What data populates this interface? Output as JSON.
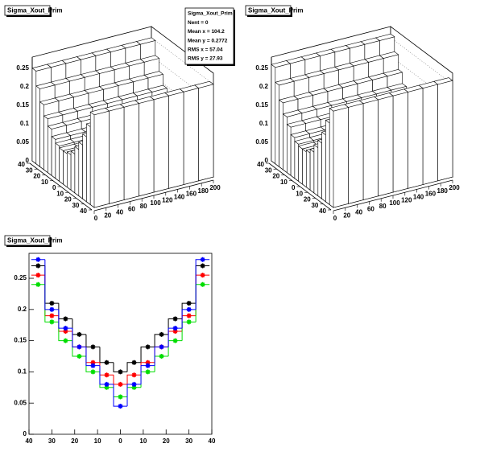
{
  "chart_data": [
    {
      "type": "lego",
      "title": "Sigma_Xout_Prim",
      "stats": [
        "Sigma_Xout_Prim",
        "Nent = 0",
        "Mean x = 104.2",
        "Mean y = 0.2772",
        "RMS x = 57.04",
        "RMS y = 27.93"
      ],
      "xlim": [
        0,
        200
      ],
      "ylim": [
        -40,
        40
      ],
      "zlim": [
        0,
        0.28
      ],
      "xticks": [
        0,
        20,
        40,
        60,
        80,
        100,
        120,
        140,
        160,
        180,
        200
      ],
      "yticks": [
        {
          "value": -40,
          "label": "40"
        },
        {
          "value": -30,
          "label": "30"
        },
        {
          "value": -20,
          "label": "20"
        },
        {
          "value": -10,
          "label": "10"
        },
        0,
        10,
        20,
        30,
        40
      ],
      "zticks": [
        0,
        0.05,
        0.1,
        0.15,
        0.2,
        0.25
      ],
      "xbins": [
        0,
        25,
        50,
        75,
        100,
        125,
        150,
        175,
        200
      ],
      "ybins": [
        -40,
        -35,
        -30,
        -25,
        -20,
        -15,
        -10,
        -5,
        0,
        5,
        10,
        15,
        20,
        25,
        30,
        35,
        40
      ],
      "values": [
        [
          0.25,
          0.21,
          0.175,
          0.145,
          0.125,
          0.105,
          0.095,
          0.09,
          0.09,
          0.095,
          0.105,
          0.125,
          0.145,
          0.175,
          0.21,
          0.25
        ],
        [
          0.25,
          0.21,
          0.175,
          0.145,
          0.125,
          0.105,
          0.095,
          0.09,
          0.09,
          0.095,
          0.105,
          0.125,
          0.145,
          0.175,
          0.21,
          0.25
        ],
        [
          0.25,
          0.21,
          0.175,
          0.145,
          0.125,
          0.105,
          0.095,
          0.09,
          0.09,
          0.095,
          0.105,
          0.125,
          0.145,
          0.175,
          0.21,
          0.25
        ],
        [
          0.25,
          0.21,
          0.175,
          0.145,
          0.125,
          0.105,
          0.095,
          0.09,
          0.09,
          0.095,
          0.105,
          0.125,
          0.145,
          0.175,
          0.21,
          0.25
        ],
        [
          0.25,
          0.21,
          0.175,
          0.145,
          0.125,
          0.105,
          0.095,
          0.09,
          0.09,
          0.095,
          0.105,
          0.125,
          0.145,
          0.175,
          0.21,
          0.25
        ],
        [
          0.25,
          0.21,
          0.175,
          0.145,
          0.125,
          0.105,
          0.095,
          0.09,
          0.09,
          0.095,
          0.105,
          0.125,
          0.145,
          0.175,
          0.21,
          0.25
        ],
        [
          0.25,
          0.21,
          0.175,
          0.145,
          0.125,
          0.105,
          0.095,
          0.09,
          0.09,
          0.095,
          0.105,
          0.125,
          0.145,
          0.175,
          0.21,
          0.25
        ],
        [
          0.25,
          0.21,
          0.175,
          0.145,
          0.125,
          0.105,
          0.095,
          0.09,
          0.09,
          0.095,
          0.105,
          0.125,
          0.145,
          0.175,
          0.21,
          0.25
        ]
      ]
    },
    {
      "type": "lego",
      "title": "Sigma_Xout_Prim",
      "xlim": [
        0,
        200
      ],
      "ylim": [
        -40,
        40
      ],
      "zlim": [
        0,
        0.28
      ],
      "xticks": [
        0,
        20,
        40,
        60,
        80,
        100,
        120,
        140,
        160,
        180,
        200
      ],
      "yticks": [
        {
          "value": -40,
          "label": "40"
        },
        {
          "value": -30,
          "label": "30"
        },
        {
          "value": -20,
          "label": "20"
        },
        {
          "value": -10,
          "label": "10"
        },
        0,
        10,
        20,
        30,
        40
      ],
      "zticks": [
        0,
        0.05,
        0.1,
        0.15,
        0.2,
        0.25
      ],
      "xbins": [
        0,
        25,
        50,
        75,
        100,
        125,
        150,
        175,
        200
      ],
      "ybins": [
        -40,
        -35,
        -30,
        -25,
        -20,
        -15,
        -10,
        -5,
        0,
        5,
        10,
        15,
        20,
        25,
        30,
        35,
        40
      ],
      "values": [
        [
          0.26,
          0.22,
          0.18,
          0.15,
          0.13,
          0.11,
          0.1,
          0.095,
          0.095,
          0.1,
          0.11,
          0.13,
          0.15,
          0.18,
          0.22,
          0.26
        ],
        [
          0.26,
          0.22,
          0.18,
          0.15,
          0.13,
          0.11,
          0.1,
          0.095,
          0.095,
          0.1,
          0.11,
          0.13,
          0.15,
          0.18,
          0.22,
          0.26
        ],
        [
          0.26,
          0.22,
          0.18,
          0.15,
          0.13,
          0.11,
          0.1,
          0.095,
          0.095,
          0.1,
          0.11,
          0.13,
          0.15,
          0.18,
          0.22,
          0.26
        ],
        [
          0.26,
          0.22,
          0.18,
          0.15,
          0.13,
          0.11,
          0.1,
          0.095,
          0.095,
          0.1,
          0.11,
          0.13,
          0.15,
          0.18,
          0.22,
          0.26
        ],
        [
          0.26,
          0.22,
          0.18,
          0.15,
          0.13,
          0.11,
          0.1,
          0.095,
          0.095,
          0.1,
          0.11,
          0.13,
          0.15,
          0.18,
          0.22,
          0.26
        ],
        [
          0.26,
          0.22,
          0.18,
          0.15,
          0.13,
          0.11,
          0.1,
          0.095,
          0.095,
          0.1,
          0.11,
          0.13,
          0.15,
          0.18,
          0.22,
          0.26
        ],
        [
          0.26,
          0.22,
          0.18,
          0.15,
          0.13,
          0.11,
          0.1,
          0.095,
          0.095,
          0.1,
          0.11,
          0.13,
          0.15,
          0.18,
          0.22,
          0.26
        ],
        [
          0.26,
          0.22,
          0.18,
          0.15,
          0.13,
          0.11,
          0.1,
          0.095,
          0.095,
          0.1,
          0.11,
          0.13,
          0.15,
          0.18,
          0.22,
          0.26
        ]
      ]
    },
    {
      "type": "step",
      "title": "Sigma_Xout_Prim",
      "x": [
        -36,
        -30,
        -24,
        -18,
        -12,
        -6,
        0,
        6,
        12,
        18,
        24,
        30,
        36
      ],
      "series": [
        {
          "color": "#000000",
          "values": [
            0.27,
            0.21,
            0.185,
            0.16,
            0.14,
            0.115,
            0.1,
            0.115,
            0.14,
            0.16,
            0.185,
            0.21,
            0.27
          ]
        },
        {
          "color": "#ff0000",
          "values": [
            0.255,
            0.19,
            0.165,
            0.14,
            0.115,
            0.095,
            0.08,
            0.095,
            0.115,
            0.14,
            0.165,
            0.19,
            0.255
          ]
        },
        {
          "color": "#00dd00",
          "values": [
            0.24,
            0.18,
            0.15,
            0.125,
            0.1,
            0.075,
            0.06,
            0.075,
            0.1,
            0.125,
            0.15,
            0.18,
            0.24
          ]
        },
        {
          "color": "#0000ff",
          "values": [
            0.28,
            0.2,
            0.17,
            0.14,
            0.11,
            0.08,
            0.045,
            0.08,
            0.11,
            0.14,
            0.17,
            0.2,
            0.28
          ]
        }
      ],
      "xlim": [
        -40,
        40
      ],
      "ylim": [
        0,
        0.29
      ],
      "xticks": [
        {
          "value": -40,
          "label": "40"
        },
        {
          "value": -30,
          "label": "30"
        },
        {
          "value": -20,
          "label": "20"
        },
        {
          "value": -10,
          "label": "10"
        },
        0,
        10,
        20,
        30,
        40
      ],
      "yticks": [
        0,
        0.05,
        0.1,
        0.15,
        0.2,
        0.25
      ]
    }
  ]
}
